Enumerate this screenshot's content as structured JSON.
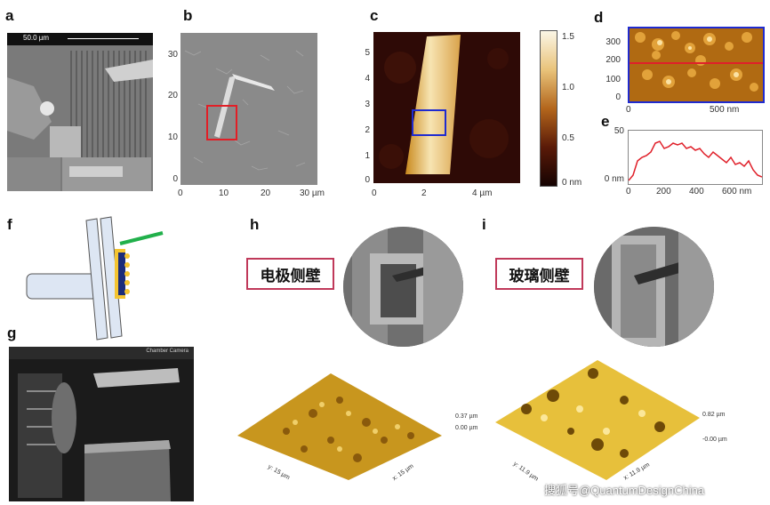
{
  "panels": {
    "a": {
      "label": "a",
      "scale_text": "50.0 µm"
    },
    "b": {
      "label": "b",
      "yticks": [
        "30",
        "20",
        "10",
        "0"
      ],
      "xticks": [
        "0",
        "10",
        "20",
        "30 µm"
      ]
    },
    "c": {
      "label": "c",
      "yticks": [
        "5",
        "4",
        "3",
        "2",
        "1",
        "0"
      ],
      "xticks": [
        "0",
        "2",
        "4 µm"
      ],
      "colorbar_ticks": [
        "1.5",
        "1.0",
        "0.5",
        "0 nm"
      ]
    },
    "d": {
      "label": "d",
      "yticks": [
        "300",
        "200",
        "100",
        "0"
      ],
      "xticks": [
        "0",
        "500 nm"
      ]
    },
    "e": {
      "label": "e",
      "yticks": [
        "50",
        "0 nm"
      ],
      "xticks": [
        "0",
        "200",
        "400",
        "600 nm"
      ]
    },
    "f": {
      "label": "f"
    },
    "g": {
      "label": "g",
      "camera_title": "Chamber Camera"
    },
    "h": {
      "label": "h",
      "title": "电极侧壁",
      "z_top": "0.37 µm",
      "z_bottom": "0.00 µm",
      "axis_y": "y: 15 µm",
      "axis_x": "x: 15 µm"
    },
    "i": {
      "label": "i",
      "title": "玻璃侧壁",
      "z_top": "0.82 µm",
      "z_bottom": "-0.00 µm",
      "axis_y": "y: 11.9 µm",
      "axis_x": "x: 11.9 µm"
    }
  },
  "watermark": "搜狐号@QuantumDesignChina",
  "colors": {
    "box_border": "#c0395a",
    "afm_gold": "#c8961e",
    "profile_red": "#e0202a",
    "blue_box": "#1f2bd0",
    "green": "#21b04b"
  }
}
